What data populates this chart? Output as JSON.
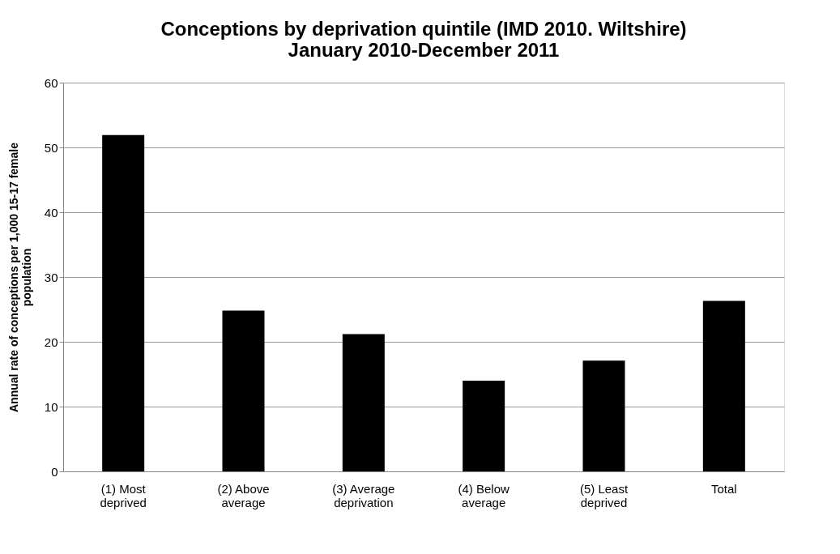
{
  "chart_data": {
    "type": "bar",
    "title": [
      "Conceptions by deprivation quintile (IMD 2010. Wiltshire)",
      "January 2010-December 2011"
    ],
    "ylabel": [
      "Annual rate of conceptions per 1,000 15-17 female",
      "population"
    ],
    "categories": [
      "(1) Most deprived",
      "(2) Above average",
      "(3) Average deprivation",
      "(4) Below average",
      "(5) Least deprived",
      "Total"
    ],
    "values": [
      51.9,
      24.8,
      21.2,
      14.0,
      17.1,
      26.3
    ],
    "color": "#000000",
    "ylim": [
      0,
      60
    ],
    "yticks": [
      0,
      10,
      20,
      30,
      40,
      50,
      60
    ],
    "grid": "y"
  }
}
